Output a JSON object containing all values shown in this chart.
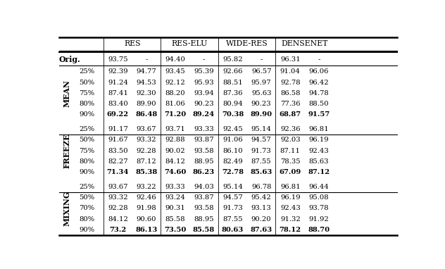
{
  "section_header_labels": [
    "RES",
    "RES-ELU",
    "WIDE-RES",
    "DENSENET"
  ],
  "orig_data": [
    "93.75",
    "-",
    "94.40",
    "-",
    "95.82",
    "-",
    "96.31",
    "-"
  ],
  "sections": [
    {
      "label": "MEAN",
      "rows": [
        {
          "pct": "25%",
          "data": [
            "92.39",
            "94.77",
            "93.45",
            "95.39",
            "92.66",
            "96.57",
            "91.04",
            "96.06"
          ],
          "bold": false
        },
        {
          "pct": "50%",
          "data": [
            "91.24",
            "94.53",
            "92.12",
            "95.93",
            "88.51",
            "95.97",
            "92.78",
            "96.42"
          ],
          "bold": false
        },
        {
          "pct": "75%",
          "data": [
            "87.41",
            "92.30",
            "88.20",
            "93.94",
            "87.36",
            "95.63",
            "86.58",
            "94.78"
          ],
          "bold": false
        },
        {
          "pct": "80%",
          "data": [
            "83.40",
            "89.90",
            "81.06",
            "90.23",
            "80.94",
            "90.23",
            "77.36",
            "88.50"
          ],
          "bold": false
        },
        {
          "pct": "90%",
          "data": [
            "69.22",
            "86.48",
            "71.20",
            "89.24",
            "70.38",
            "89.90",
            "68.87",
            "91.57"
          ],
          "bold": true
        }
      ]
    },
    {
      "label": "FREEZE",
      "rows": [
        {
          "pct": "25%",
          "data": [
            "91.17",
            "93.67",
            "93.71",
            "93.33",
            "92.45",
            "95.14",
            "92.36",
            "96.81"
          ],
          "bold": false
        },
        {
          "pct": "50%",
          "data": [
            "91.67",
            "93.32",
            "92.88",
            "93.87",
            "91.06",
            "94.57",
            "92.03",
            "96.19"
          ],
          "bold": false
        },
        {
          "pct": "75%",
          "data": [
            "83.50",
            "92.28",
            "90.02",
            "93.58",
            "86.10",
            "91.73",
            "87.11",
            "92.43"
          ],
          "bold": false
        },
        {
          "pct": "80%",
          "data": [
            "82.27",
            "87.12",
            "84.12",
            "88.95",
            "82.49",
            "87.55",
            "78.35",
            "85.63"
          ],
          "bold": false
        },
        {
          "pct": "90%",
          "data": [
            "71.34",
            "85.38",
            "74.60",
            "86.23",
            "72.78",
            "85.63",
            "67.09",
            "87.12"
          ],
          "bold": true
        }
      ]
    },
    {
      "label": "MIXING",
      "rows": [
        {
          "pct": "25%",
          "data": [
            "93.67",
            "93.22",
            "93.33",
            "94.03",
            "95.14",
            "96.78",
            "96.81",
            "96.44"
          ],
          "bold": false
        },
        {
          "pct": "50%",
          "data": [
            "93.32",
            "92.46",
            "93.24",
            "93.87",
            "94.57",
            "95.42",
            "96.19",
            "95.08"
          ],
          "bold": false
        },
        {
          "pct": "70%",
          "data": [
            "92.28",
            "91.98",
            "90.31",
            "93.58",
            "91.73",
            "93.13",
            "92.43",
            "93.78"
          ],
          "bold": false
        },
        {
          "pct": "80%",
          "data": [
            "84.12",
            "90.60",
            "85.58",
            "88.95",
            "87.55",
            "90.20",
            "91.32",
            "91.92"
          ],
          "bold": false
        },
        {
          "pct": "90%",
          "data": [
            "73.2",
            "86.13",
            "73.50",
            "85.58",
            "80.63",
            "87.63",
            "78.12",
            "88.70"
          ],
          "bold": true
        }
      ]
    }
  ],
  "bg_color": "#ffffff",
  "text_color": "#000000",
  "line_color": "#000000",
  "fontsize": 7.2,
  "header_fontsize": 7.8
}
